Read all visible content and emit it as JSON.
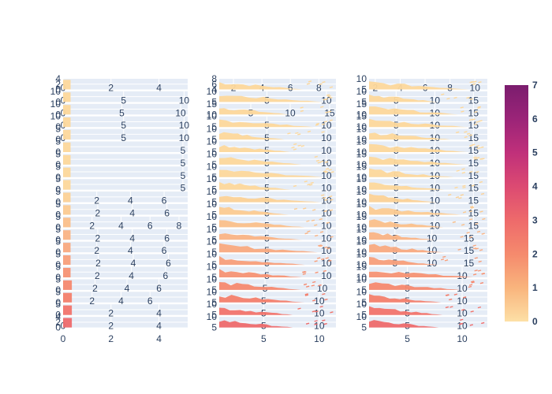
{
  "chart_data": {
    "type": "scatter",
    "title": "",
    "grid": true,
    "subplot_grid": {
      "rows": 20,
      "columns": 3
    },
    "colorbar": {
      "min": 0,
      "max": 7,
      "ticks": [
        "0",
        "1",
        "2",
        "3",
        "4",
        "5",
        "6",
        "7"
      ],
      "colors": [
        "#fde0a6",
        "#f9b47d",
        "#f58a6d",
        "#ee6a6b",
        "#dc4a72",
        "#c0307a",
        "#9b2478",
        "#7b1d6e"
      ]
    },
    "series_color": [
      "#fdd89b",
      "#fdd89b",
      "#fdd89b",
      "#fdd89b",
      "#fdd89b",
      "#fdd89b",
      "#fdd89b",
      "#fdd89b",
      "#fdd89b",
      "#fcd296",
      "#fccb91",
      "#fbc08a",
      "#fab485",
      "#f9aa80",
      "#f89f7a",
      "#f79474",
      "#f6896f",
      "#f47f6c",
      "#f2746b",
      "#ee6a6b"
    ],
    "columns": [
      {
        "x_ranges": [
          [
            0,
            5.2
          ],
          [
            0,
            10.3
          ],
          [
            0,
            10.6
          ],
          [
            0,
            10.3
          ],
          [
            0,
            10.3
          ],
          [
            0,
            5.2
          ],
          [
            0,
            5.2
          ],
          [
            0,
            5.2
          ],
          [
            0,
            5.2
          ],
          [
            0,
            7.4
          ],
          [
            0,
            7.2
          ],
          [
            0,
            8.6
          ],
          [
            0,
            7.2
          ],
          [
            0,
            7.4
          ],
          [
            0,
            7.1
          ],
          [
            0,
            7.3
          ],
          [
            0,
            7.8
          ],
          [
            0,
            8.6
          ],
          [
            0,
            5.2
          ],
          [
            0,
            5.2
          ]
        ],
        "x_ticks": [
          [
            "0",
            "2",
            "4"
          ],
          [
            "0",
            "5",
            "10"
          ],
          [
            "0",
            "5",
            "10"
          ],
          [
            "0",
            "5",
            "10"
          ],
          [
            "0",
            "5",
            "10"
          ],
          [
            "5"
          ],
          [
            "5"
          ],
          [
            "5"
          ],
          [
            "5"
          ],
          [
            "2",
            "4",
            "6"
          ],
          [
            "2",
            "4",
            "6"
          ],
          [
            "2",
            "4",
            "6",
            "8"
          ],
          [
            "2",
            "4",
            "6"
          ],
          [
            "2",
            "4",
            "6"
          ],
          [
            "2",
            "4",
            "6"
          ],
          [
            "2",
            "4",
            "6"
          ],
          [
            "2",
            "4",
            "6"
          ],
          [
            "2",
            "4",
            "6"
          ],
          [
            "2",
            "4"
          ],
          [
            "0",
            "2",
            "4"
          ]
        ],
        "y_ticks": [
          [
            "4",
            "2",
            "0"
          ],
          [
            "10",
            "0"
          ],
          [
            "10",
            "0"
          ],
          [
            "10",
            "0"
          ],
          [
            "5",
            "0"
          ],
          [
            "5",
            "0"
          ],
          [
            "5",
            "0"
          ],
          [
            "5",
            "0"
          ],
          [
            "5",
            "0"
          ],
          [
            "5",
            "0"
          ],
          [
            "5",
            "0"
          ],
          [
            "5",
            "0"
          ],
          [
            "5",
            "0"
          ],
          [
            "5",
            "0"
          ],
          [
            "5",
            "0"
          ],
          [
            "5",
            "0"
          ],
          [
            "5",
            "0"
          ],
          [
            "5",
            "0"
          ],
          [
            "5",
            "0"
          ],
          [
            "4",
            "2",
            "0"
          ]
        ]
      },
      {
        "x_ranges": [
          [
            1,
            9.2
          ],
          [
            1,
            10.8
          ],
          [
            1,
            15.8
          ],
          [
            1,
            10.8
          ],
          [
            1,
            10.8
          ],
          [
            1,
            10.8
          ],
          [
            1,
            10.8
          ],
          [
            1,
            10.8
          ],
          [
            1,
            10.8
          ],
          [
            1,
            10.8
          ],
          [
            1,
            10.8
          ],
          [
            1,
            10.8
          ],
          [
            1,
            10.8
          ],
          [
            1,
            10.8
          ],
          [
            1,
            10.8
          ],
          [
            1,
            10.8
          ],
          [
            1,
            11.2
          ],
          [
            1,
            11.5
          ],
          [
            1,
            11.5
          ],
          [
            1,
            11.5
          ]
        ],
        "x_ticks": [
          [
            "2",
            "4",
            "6",
            "8"
          ],
          [
            "5",
            "10"
          ],
          [
            "5",
            "10",
            "15"
          ],
          [
            "5",
            "10"
          ],
          [
            "5",
            "10"
          ],
          [
            "5",
            "10"
          ],
          [
            "5",
            "10"
          ],
          [
            "5",
            "10"
          ],
          [
            "5",
            "10"
          ],
          [
            "5",
            "10"
          ],
          [
            "5",
            "10"
          ],
          [
            "5",
            "10"
          ],
          [
            "5",
            "10"
          ],
          [
            "5",
            "10"
          ],
          [
            "5",
            "10"
          ],
          [
            "5",
            "10"
          ],
          [
            "5",
            "10"
          ],
          [
            "5",
            "10"
          ],
          [
            "5",
            "10"
          ],
          [
            "5",
            "10"
          ]
        ],
        "y_ticks": [
          [
            "8",
            "6",
            "4"
          ],
          [
            "10",
            "5"
          ],
          [
            "15",
            "10"
          ],
          [
            "10",
            "5"
          ],
          [
            "10",
            "5"
          ],
          [
            "10",
            "5"
          ],
          [
            "10",
            "5"
          ],
          [
            "10",
            "5"
          ],
          [
            "10",
            "5"
          ],
          [
            "10",
            "5"
          ],
          [
            "10",
            "5"
          ],
          [
            "10",
            "5"
          ],
          [
            "10",
            "5"
          ],
          [
            "10",
            "5"
          ],
          [
            "10",
            "5"
          ],
          [
            "10",
            "5"
          ],
          [
            "10",
            "5"
          ],
          [
            "10",
            "5"
          ],
          [
            "10",
            "5"
          ],
          [
            "10",
            "5"
          ]
        ]
      },
      {
        "x_ranges": [
          [
            1.5,
            11
          ],
          [
            1.5,
            16.8
          ],
          [
            1.5,
            16.8
          ],
          [
            1.5,
            16.8
          ],
          [
            1.5,
            16.8
          ],
          [
            1.5,
            16.8
          ],
          [
            1.5,
            16.8
          ],
          [
            1.5,
            16.8
          ],
          [
            1.5,
            16.8
          ],
          [
            1.5,
            16.8
          ],
          [
            1.5,
            16.8
          ],
          [
            1.5,
            16.8
          ],
          [
            1.5,
            17.5
          ],
          [
            1.5,
            17.5
          ],
          [
            1.5,
            17.5
          ],
          [
            1.5,
            12.3
          ],
          [
            1.5,
            12.3
          ],
          [
            1.5,
            12.3
          ],
          [
            1.5,
            12.3
          ],
          [
            1.5,
            12.3
          ]
        ],
        "x_ticks": [
          [
            "2",
            "4",
            "6",
            "8",
            "10"
          ],
          [
            "5",
            "10",
            "15"
          ],
          [
            "5",
            "10",
            "15"
          ],
          [
            "5",
            "10",
            "15"
          ],
          [
            "5",
            "10",
            "15"
          ],
          [
            "5",
            "10",
            "15"
          ],
          [
            "5",
            "10",
            "15"
          ],
          [
            "5",
            "10",
            "15"
          ],
          [
            "5",
            "10",
            "15"
          ],
          [
            "5",
            "10",
            "15"
          ],
          [
            "5",
            "10",
            "15"
          ],
          [
            "5",
            "10",
            "15"
          ],
          [
            "5",
            "10",
            "15"
          ],
          [
            "5",
            "10",
            "15"
          ],
          [
            "5",
            "10",
            "15"
          ],
          [
            "5",
            "10"
          ],
          [
            "5",
            "10"
          ],
          [
            "5",
            "10"
          ],
          [
            "5",
            "10"
          ],
          [
            "5",
            "10"
          ]
        ],
        "y_ticks": [
          [
            "10",
            "5"
          ],
          [
            "10",
            "5"
          ],
          [
            "15",
            "10"
          ],
          [
            "15",
            "10"
          ],
          [
            "15",
            "10"
          ],
          [
            "15",
            "10"
          ],
          [
            "15",
            "10"
          ],
          [
            "15",
            "10"
          ],
          [
            "15",
            "10"
          ],
          [
            "15",
            "10"
          ],
          [
            "15",
            "10"
          ],
          [
            "15",
            "10"
          ],
          [
            "15",
            "10"
          ],
          [
            "15",
            "10"
          ],
          [
            "15",
            "10"
          ],
          [
            "15",
            "10"
          ],
          [
            "10",
            "5"
          ],
          [
            "10",
            "5"
          ],
          [
            "10",
            "5"
          ],
          [
            "10",
            "5"
          ]
        ]
      }
    ],
    "bottom_axis": [
      {
        "ticks": [
          "0",
          "2",
          "4"
        ]
      },
      {
        "ticks": [
          "5",
          "10"
        ]
      },
      {
        "ticks": [
          "5",
          "10"
        ]
      }
    ]
  }
}
